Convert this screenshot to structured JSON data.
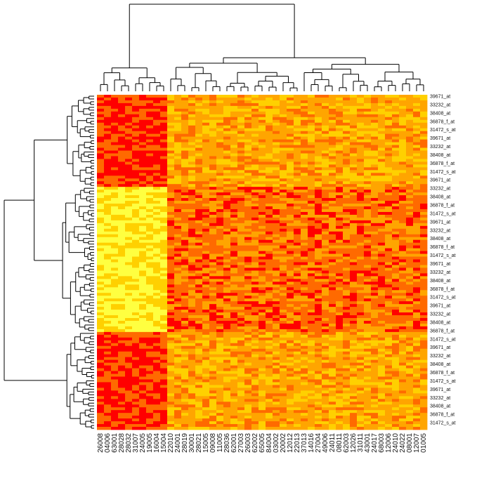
{
  "chart_data": {
    "type": "heatmap",
    "title": "",
    "xlabel": "",
    "ylabel": "",
    "colormap": [
      "#ff0000",
      "#ff6a00",
      "#ffa500",
      "#ffd000",
      "#ffff40"
    ],
    "dendrograms": {
      "rows": true,
      "columns": true
    },
    "columns": [
      "26008",
      "04006",
      "63001",
      "28028",
      "28032",
      "31007",
      "24005",
      "19005",
      "16004",
      "15004",
      "22010",
      "24001",
      "28019",
      "30001",
      "28021",
      "15005",
      "09008",
      "11005",
      "28036",
      "62001",
      "27003",
      "26003",
      "62002",
      "65005",
      "84004",
      "03002",
      "20002",
      "12012",
      "22013",
      "37013",
      "14016",
      "27004",
      "49006",
      "24011",
      "08011",
      "62003",
      "12026",
      "31011",
      "43001",
      "24017",
      "68003",
      "12006",
      "24010",
      "24022",
      "08001",
      "12007",
      "01005"
    ],
    "row_labels_legible": [
      "39671_at",
      "33232_at",
      "38408_at",
      "36878_f_at",
      "31472_s_at"
    ],
    "n_rows": 120,
    "column_groups": [
      {
        "columns": "26008–15004",
        "note": "high in upper and lower row blocks, low in middle block"
      },
      {
        "columns": "22010–01005",
        "note": "moderate values throughout"
      }
    ],
    "row_blocks": [
      {
        "rows": "top",
        "approx_count": 33,
        "left_group": "red/orange",
        "right_group": "orange/yellow"
      },
      {
        "rows": "middle",
        "approx_count": 52,
        "left_group": "yellow",
        "right_group": "orange"
      },
      {
        "rows": "bottom",
        "approx_count": 35,
        "left_group": "red/orange",
        "right_group": "orange/yellow"
      }
    ]
  }
}
